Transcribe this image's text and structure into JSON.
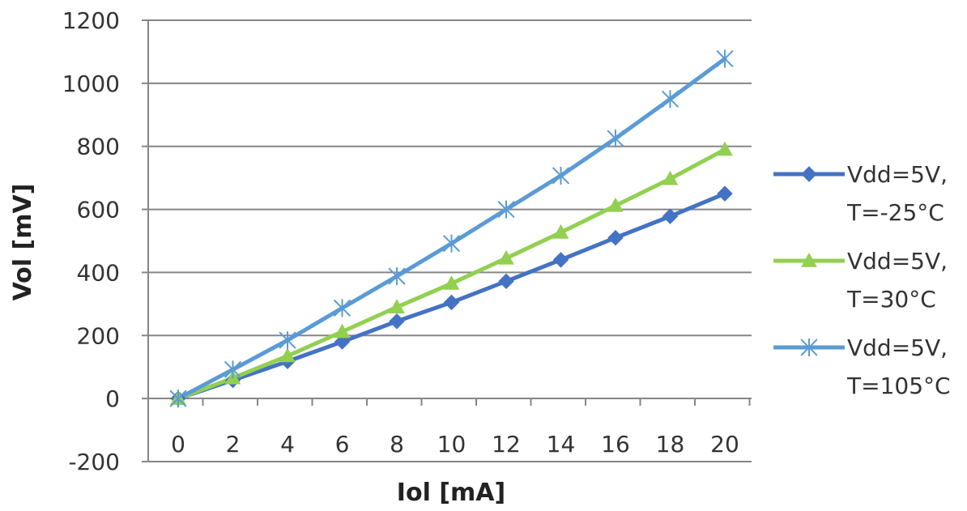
{
  "chart_data": {
    "type": "line",
    "title": "",
    "xlabel": "Iol [mA]",
    "ylabel": "Vol [mV]",
    "x": [
      0,
      2,
      4,
      6,
      8,
      10,
      12,
      14,
      16,
      18,
      20
    ],
    "x_ticks": [
      "0",
      "2",
      "4",
      "6",
      "8",
      "10",
      "12",
      "14",
      "16",
      "18",
      "20"
    ],
    "ylim": [
      -200,
      1200
    ],
    "y_ticks": [
      "-200",
      "0",
      "200",
      "400",
      "600",
      "800",
      "1000",
      "1200"
    ],
    "grid": true,
    "legend_position": "right",
    "series": [
      {
        "label_lines": [
          "Vdd=5V,",
          "T=-25°C"
        ],
        "marker": "diamond",
        "color": "#4472C4",
        "values": [
          0,
          58,
          118,
          180,
          245,
          305,
          372,
          440,
          510,
          578,
          650
        ]
      },
      {
        "label_lines": [
          "Vdd=5V,",
          "T=30°C"
        ],
        "marker": "triangle",
        "color": "#92D050",
        "values": [
          0,
          65,
          135,
          212,
          290,
          365,
          445,
          527,
          612,
          697,
          790
        ]
      },
      {
        "label_lines": [
          "Vdd=5V,",
          "T=105°C"
        ],
        "marker": "asterisk",
        "color": "#5B9BD5",
        "values": [
          0,
          92,
          185,
          287,
          388,
          492,
          600,
          707,
          825,
          950,
          1078
        ]
      }
    ]
  }
}
